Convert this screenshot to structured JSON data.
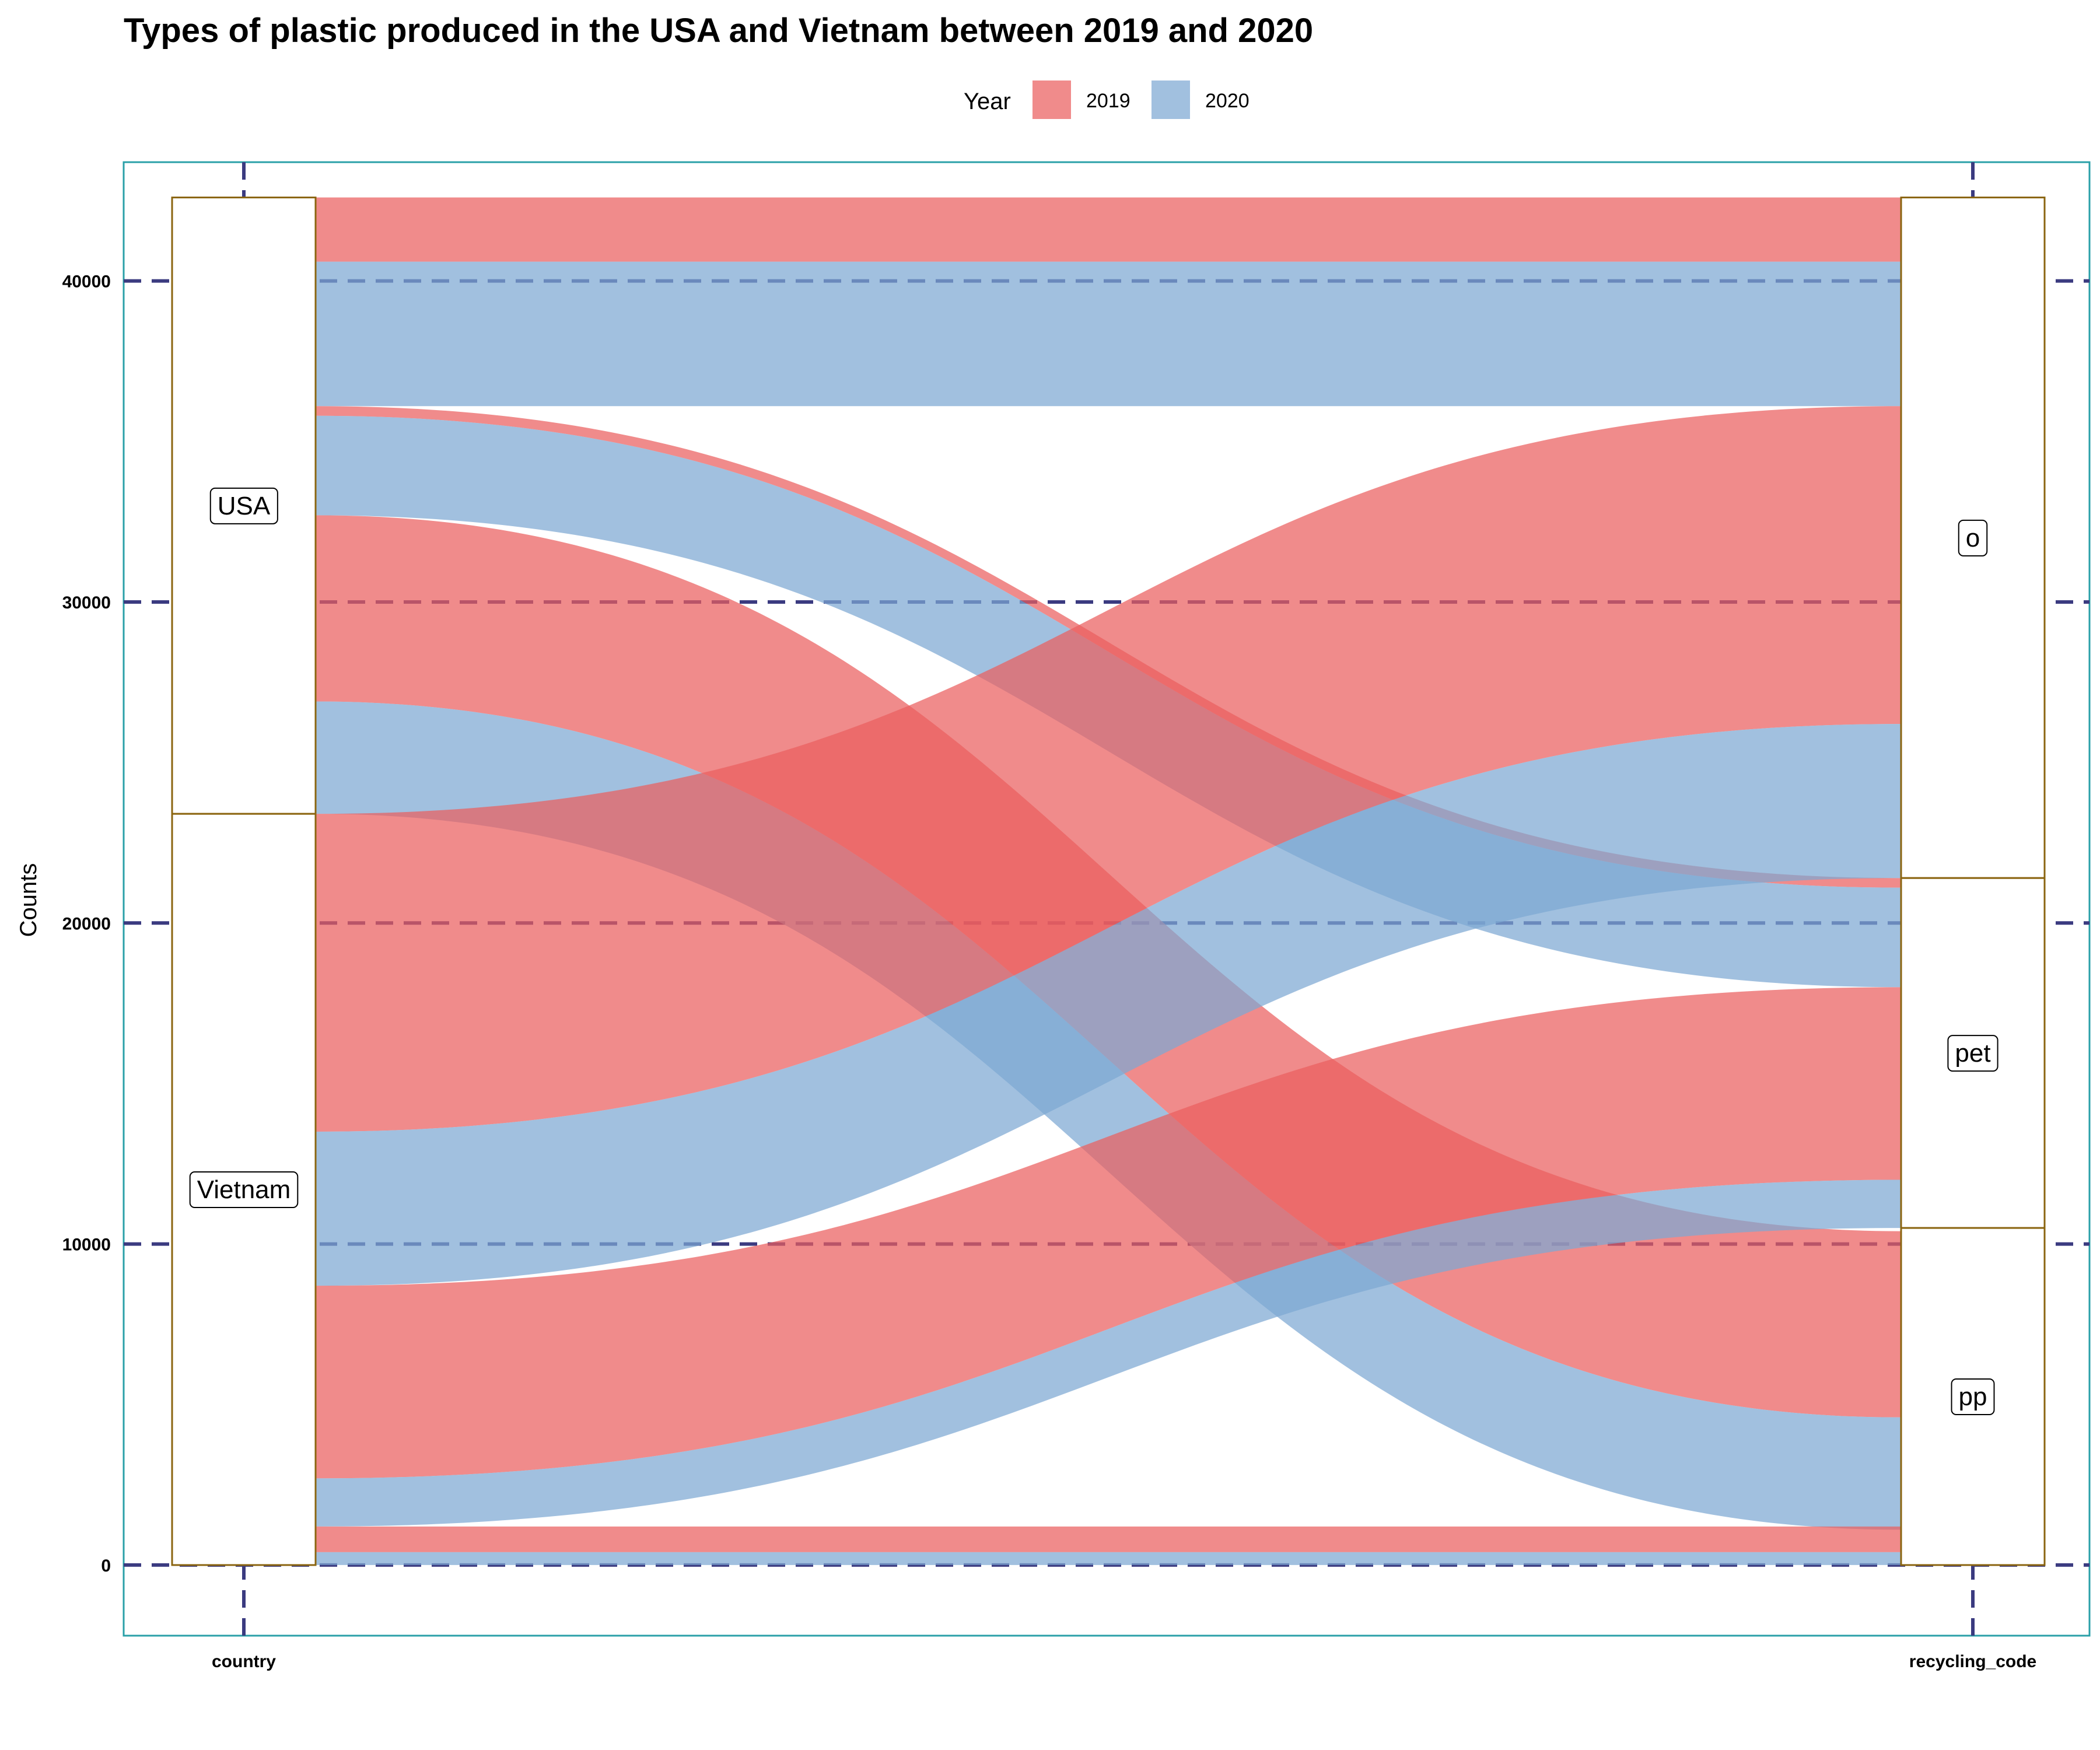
{
  "chart_data": {
    "type": "alluvial",
    "title": "Types of plastic produced in the USA and Vietnam between 2019 and 2020",
    "ylabel": "Counts",
    "ylim": [
      -2200,
      43700
    ],
    "yticks": [
      0,
      10000,
      20000,
      30000,
      40000
    ],
    "ytick_labels": [
      "0",
      "10000",
      "20000",
      "30000",
      "40000"
    ],
    "axes": [
      "country",
      "recycling_code"
    ],
    "legend": {
      "title": "Year",
      "position": "top",
      "entries": [
        {
          "label": "2019",
          "color": "#EA5E5E"
        },
        {
          "label": "2020",
          "color": "#7DA7D2"
        }
      ]
    },
    "grid": true,
    "strata": [
      {
        "axis": "country",
        "label": "USA",
        "from": 23400,
        "to": 42600
      },
      {
        "axis": "country",
        "label": "Vietnam",
        "from": 0,
        "to": 23400
      },
      {
        "axis": "recycling_code",
        "label": "o",
        "from": 21400,
        "to": 42600
      },
      {
        "axis": "recycling_code",
        "label": "pet",
        "from": 10500,
        "to": 21400
      },
      {
        "axis": "recycling_code",
        "label": "pp",
        "from": 0,
        "to": 10500
      }
    ],
    "flows": [
      {
        "country": "USA",
        "recycling_code": "o",
        "year": "2019",
        "value": 2000,
        "left": [
          40600,
          42600
        ],
        "right": [
          40600,
          42600
        ]
      },
      {
        "country": "USA",
        "recycling_code": "o",
        "year": "2020",
        "value": 4500,
        "left": [
          36100,
          40600
        ],
        "right": [
          36100,
          40600
        ]
      },
      {
        "country": "USA",
        "recycling_code": "pet",
        "year": "2019",
        "value": 300,
        "left": [
          35800,
          36100
        ],
        "right": [
          21100,
          21400
        ]
      },
      {
        "country": "USA",
        "recycling_code": "pet",
        "year": "2020",
        "value": 3100,
        "left": [
          32700,
          35800
        ],
        "right": [
          18000,
          21100
        ]
      },
      {
        "country": "USA",
        "recycling_code": "pp",
        "year": "2019",
        "value": 5800,
        "left": [
          26900,
          32700
        ],
        "right": [
          4600,
          10400
        ]
      },
      {
        "country": "USA",
        "recycling_code": "pp",
        "year": "2020",
        "value": 3500,
        "left": [
          23400,
          26900
        ],
        "right": [
          1100,
          4600
        ]
      },
      {
        "country": "Vietnam",
        "recycling_code": "o",
        "year": "2019",
        "value": 9900,
        "left": [
          13500,
          23400
        ],
        "right": [
          26200,
          36100
        ]
      },
      {
        "country": "Vietnam",
        "recycling_code": "o",
        "year": "2020",
        "value": 4800,
        "left": [
          8700,
          13500
        ],
        "right": [
          21400,
          26200
        ]
      },
      {
        "country": "Vietnam",
        "recycling_code": "pet",
        "year": "2019",
        "value": 6000,
        "left": [
          2700,
          8700
        ],
        "right": [
          12000,
          18000
        ]
      },
      {
        "country": "Vietnam",
        "recycling_code": "pet",
        "year": "2020",
        "value": 1500,
        "left": [
          1200,
          2700
        ],
        "right": [
          10500,
          12000
        ]
      },
      {
        "country": "Vietnam",
        "recycling_code": "pp",
        "year": "2019",
        "value": 800,
        "left": [
          400,
          1200
        ],
        "right": [
          400,
          1200
        ]
      },
      {
        "country": "Vietnam",
        "recycling_code": "pp",
        "year": "2020",
        "value": 400,
        "left": [
          0,
          400
        ],
        "right": [
          0,
          400
        ]
      }
    ]
  },
  "style": {
    "flow_opacity": 0.72,
    "grid_color": "#3B3B80",
    "panel_border_color": "#2AA0A8",
    "stratum_border_color": "#8B6510"
  }
}
